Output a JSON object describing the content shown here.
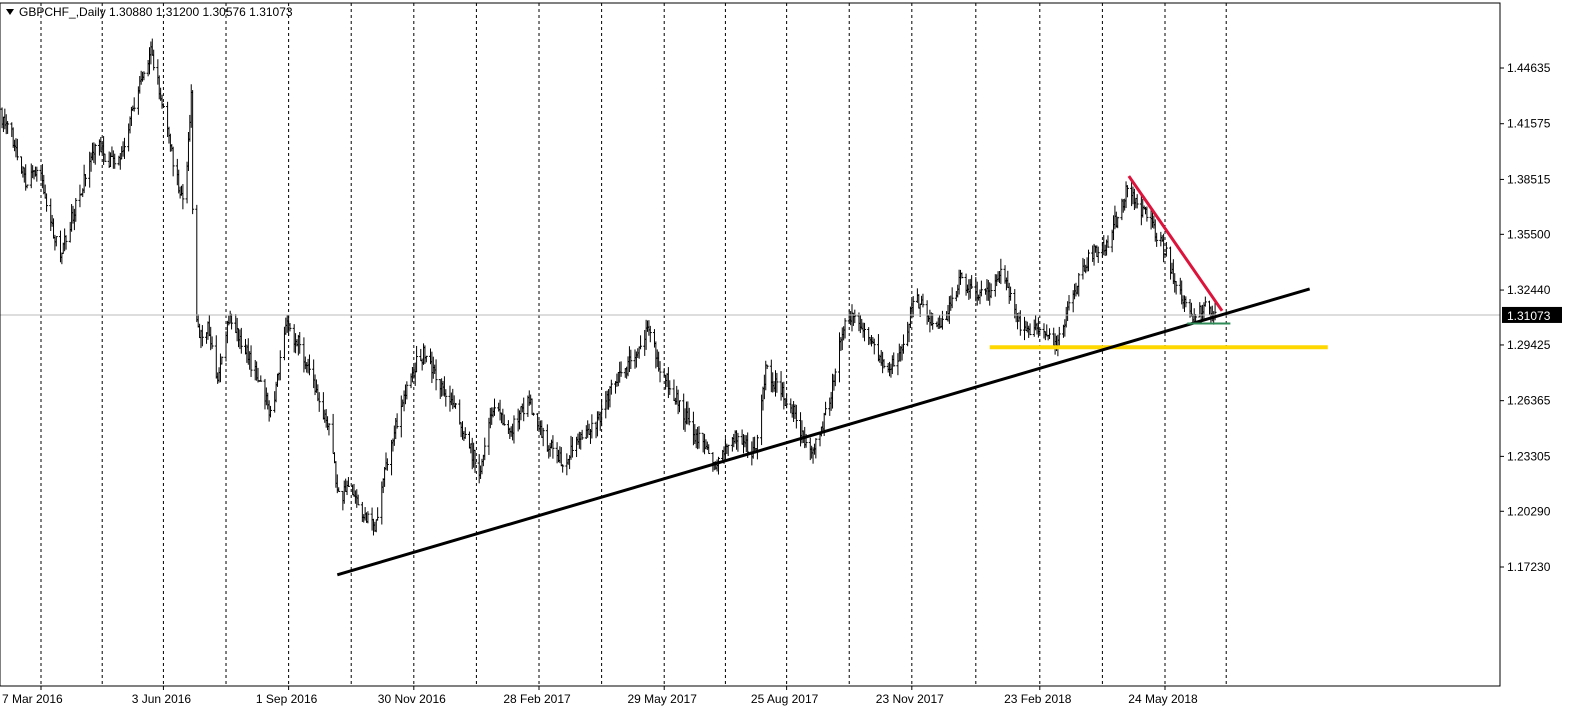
{
  "header": {
    "symbol": "GBPCHF_",
    "timeframe": "Daily",
    "ohlc_text": "1.30880 1.31200 1.30576 1.31073"
  },
  "current_price_label": "1.31073",
  "colors": {
    "background": "#ffffff",
    "candles": "#000000",
    "grid": "#000000",
    "trendline_support": "#000000",
    "trendline_resistance": "#dc143c",
    "support_level": "#ffd700",
    "neckline": "#2e8b57",
    "price_label_bg": "#000000",
    "price_label_fg": "#ffffff"
  },
  "chart_data": {
    "type": "ohlc",
    "title": "GBPCHF_,Daily",
    "ylim": [
      1.155,
      1.47
    ],
    "y_ticks": [
      "1.44635",
      "1.41575",
      "1.38515",
      "1.35500",
      "1.32440",
      "1.29425",
      "1.26365",
      "1.23305",
      "1.20290",
      "1.17230"
    ],
    "x_ticks": [
      "7 Mar 2016",
      "3 Jun 2016",
      "1 Sep 2016",
      "30 Nov 2016",
      "28 Feb 2017",
      "29 May 2017",
      "25 Aug 2017",
      "23 Nov 2017",
      "23 Feb 2018",
      "24 May 2018"
    ],
    "grid": "vertical-dashed",
    "current_price": 1.31073,
    "price_path": [
      [
        "2016-02-01",
        1.425
      ],
      [
        "2016-02-15",
        1.41
      ],
      [
        "2016-02-25",
        1.385
      ],
      [
        "2016-03-07",
        1.39
      ],
      [
        "2016-03-14",
        1.36
      ],
      [
        "2016-03-21",
        1.345
      ],
      [
        "2016-04-05",
        1.38
      ],
      [
        "2016-04-15",
        1.405
      ],
      [
        "2016-04-25",
        1.395
      ],
      [
        "2016-05-05",
        1.4
      ],
      [
        "2016-05-15",
        1.435
      ],
      [
        "2016-05-25",
        1.455
      ],
      [
        "2016-06-01",
        1.43
      ],
      [
        "2016-06-10",
        1.395
      ],
      [
        "2016-06-18",
        1.37
      ],
      [
        "2016-06-23",
        1.43
      ],
      [
        "2016-06-25",
        1.31
      ],
      [
        "2016-06-30",
        1.3
      ],
      [
        "2016-07-05",
        1.305
      ],
      [
        "2016-07-12",
        1.275
      ],
      [
        "2016-07-20",
        1.31
      ],
      [
        "2016-07-30",
        1.295
      ],
      [
        "2016-08-10",
        1.275
      ],
      [
        "2016-08-20",
        1.255
      ],
      [
        "2016-08-30",
        1.305
      ],
      [
        "2016-09-08",
        1.295
      ],
      [
        "2016-09-18",
        1.275
      ],
      [
        "2016-10-01",
        1.245
      ],
      [
        "2016-10-07",
        1.21
      ],
      [
        "2016-10-15",
        1.215
      ],
      [
        "2016-10-25",
        1.2
      ],
      [
        "2016-11-02",
        1.195
      ],
      [
        "2016-11-12",
        1.235
      ],
      [
        "2016-11-22",
        1.265
      ],
      [
        "2016-12-02",
        1.285
      ],
      [
        "2016-12-08",
        1.29
      ],
      [
        "2016-12-18",
        1.275
      ],
      [
        "2017-01-01",
        1.255
      ],
      [
        "2017-01-16",
        1.225
      ],
      [
        "2017-01-26",
        1.26
      ],
      [
        "2017-02-07",
        1.245
      ],
      [
        "2017-02-20",
        1.265
      ],
      [
        "2017-03-05",
        1.24
      ],
      [
        "2017-03-18",
        1.23
      ],
      [
        "2017-03-28",
        1.245
      ],
      [
        "2017-04-10",
        1.25
      ],
      [
        "2017-04-20",
        1.27
      ],
      [
        "2017-04-30",
        1.28
      ],
      [
        "2017-05-10",
        1.29
      ],
      [
        "2017-05-17",
        1.305
      ],
      [
        "2017-05-27",
        1.28
      ],
      [
        "2017-06-07",
        1.265
      ],
      [
        "2017-06-20",
        1.245
      ],
      [
        "2017-07-05",
        1.23
      ],
      [
        "2017-07-20",
        1.245
      ],
      [
        "2017-08-02",
        1.235
      ],
      [
        "2017-08-10",
        1.28
      ],
      [
        "2017-08-20",
        1.27
      ],
      [
        "2017-09-01",
        1.255
      ],
      [
        "2017-09-10",
        1.235
      ],
      [
        "2017-09-18",
        1.245
      ],
      [
        "2017-09-28",
        1.275
      ],
      [
        "2017-10-05",
        1.305
      ],
      [
        "2017-10-15",
        1.31
      ],
      [
        "2017-10-25",
        1.295
      ],
      [
        "2017-11-05",
        1.28
      ],
      [
        "2017-11-15",
        1.29
      ],
      [
        "2017-11-25",
        1.32
      ],
      [
        "2017-12-05",
        1.31
      ],
      [
        "2017-12-15",
        1.305
      ],
      [
        "2017-12-28",
        1.33
      ],
      [
        "2018-01-08",
        1.32
      ],
      [
        "2018-01-18",
        1.325
      ],
      [
        "2018-01-28",
        1.335
      ],
      [
        "2018-02-05",
        1.31
      ],
      [
        "2018-02-15",
        1.3
      ],
      [
        "2018-02-25",
        1.305
      ],
      [
        "2018-03-08",
        1.295
      ],
      [
        "2018-03-20",
        1.325
      ],
      [
        "2018-04-01",
        1.345
      ],
      [
        "2018-04-12",
        1.35
      ],
      [
        "2018-04-20",
        1.365
      ],
      [
        "2018-04-27",
        1.38
      ],
      [
        "2018-05-05",
        1.37
      ],
      [
        "2018-05-15",
        1.36
      ],
      [
        "2018-05-25",
        1.345
      ],
      [
        "2018-06-02",
        1.325
      ],
      [
        "2018-06-10",
        1.31
      ],
      [
        "2018-06-20",
        1.315
      ],
      [
        "2018-06-30",
        1.31073
      ]
    ],
    "annotations": {
      "support_trendline": {
        "from": [
          "2016-10-06",
          1.168
        ],
        "to": [
          "2018-09-05",
          1.325
        ]
      },
      "resistance_trendline": {
        "from": [
          "2018-04-28",
          1.387
        ],
        "to": [
          "2018-07-04",
          1.313
        ]
      },
      "horizontal_support": {
        "from": "2018-01-18",
        "to": "2018-09-18",
        "price": 1.293
      },
      "neckline": {
        "from": "2018-06-09",
        "to": "2018-07-10",
        "price": 1.306
      }
    }
  }
}
